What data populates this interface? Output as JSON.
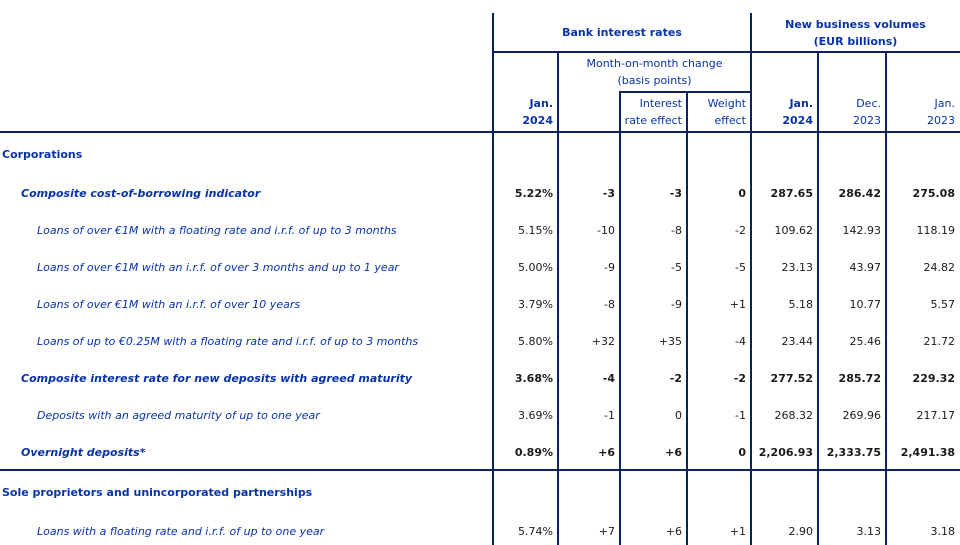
{
  "colors": {
    "heading_blue": "#0833a8",
    "border_navy": "#0b2161",
    "value_black": "#1a1a1a"
  },
  "header": {
    "bank_interest_rates": "Bank interest rates",
    "new_business_volumes_line1": "New business volumes",
    "new_business_volumes_line2": "(EUR billions)",
    "mom_change_line1": "Month-on-month change",
    "mom_change_line2": "(basis points)",
    "rate_col_line1": "Jan.",
    "rate_col_line2": "2024",
    "interest_effect_line1": "Interest",
    "interest_effect_line2": "rate effect",
    "weight_effect_line1": "Weight",
    "weight_effect_line2": "effect",
    "vol_col1_line1": "Jan.",
    "vol_col1_line2": "2024",
    "vol_col2_line1": "Dec.",
    "vol_col2_line2": "2023",
    "vol_col3_line1": "Jan.",
    "vol_col3_line2": "2023"
  },
  "rows": [
    {
      "style": "section",
      "label": "Corporations",
      "values": [
        "",
        "",
        "",
        "",
        "",
        "",
        ""
      ]
    },
    {
      "style": "composite",
      "label": "Composite cost-of-borrowing indicator",
      "values": [
        "5.22%",
        "-3",
        "-3",
        "0",
        "287.65",
        "286.42",
        "275.08"
      ]
    },
    {
      "style": "sub",
      "label": "Loans of over €1M with a floating rate and i.r.f. of up to 3 months",
      "values": [
        "5.15%",
        "-10",
        "-8",
        "-2",
        "109.62",
        "142.93",
        "118.19"
      ]
    },
    {
      "style": "sub",
      "label": "Loans of over €1M with an i.r.f. of over 3 months and up to 1 year",
      "values": [
        "5.00%",
        "-9",
        "-5",
        "-5",
        "23.13",
        "43.97",
        "24.82"
      ]
    },
    {
      "style": "sub",
      "label": "Loans of over €1M with an i.r.f. of over 10 years",
      "values": [
        "3.79%",
        "-8",
        "-9",
        "+1",
        "5.18",
        "10.77",
        "5.57"
      ]
    },
    {
      "style": "sub",
      "label": "Loans of up to €0.25M with a floating rate and i.r.f. of up to 3 months",
      "values": [
        "5.80%",
        "+32",
        "+35",
        "-4",
        "23.44",
        "25.46",
        "21.72"
      ]
    },
    {
      "style": "composite",
      "label": "Composite interest rate for new deposits with agreed maturity",
      "values": [
        "3.68%",
        "-4",
        "-2",
        "-2",
        "277.52",
        "285.72",
        "229.32"
      ]
    },
    {
      "style": "sub",
      "label": "Deposits with an agreed maturity of up to one year",
      "values": [
        "3.69%",
        "-1",
        "0",
        "-1",
        "268.32",
        "269.96",
        "217.17"
      ]
    },
    {
      "style": "composite",
      "label": "Overnight deposits*",
      "values": [
        "0.89%",
        "+6",
        "+6",
        "0",
        "2,206.93",
        "2,333.75",
        "2,491.38"
      ]
    },
    {
      "style": "section",
      "label": "Sole proprietors and unincorporated partnerships",
      "values": [
        "",
        "",
        "",
        "",
        "",
        "",
        ""
      ]
    },
    {
      "style": "sub",
      "label": "Loans with a floating rate and i.r.f. of up to one year",
      "values": [
        "5.74%",
        "+7",
        "+6",
        "+1",
        "2.90",
        "3.13",
        "3.18"
      ]
    }
  ]
}
